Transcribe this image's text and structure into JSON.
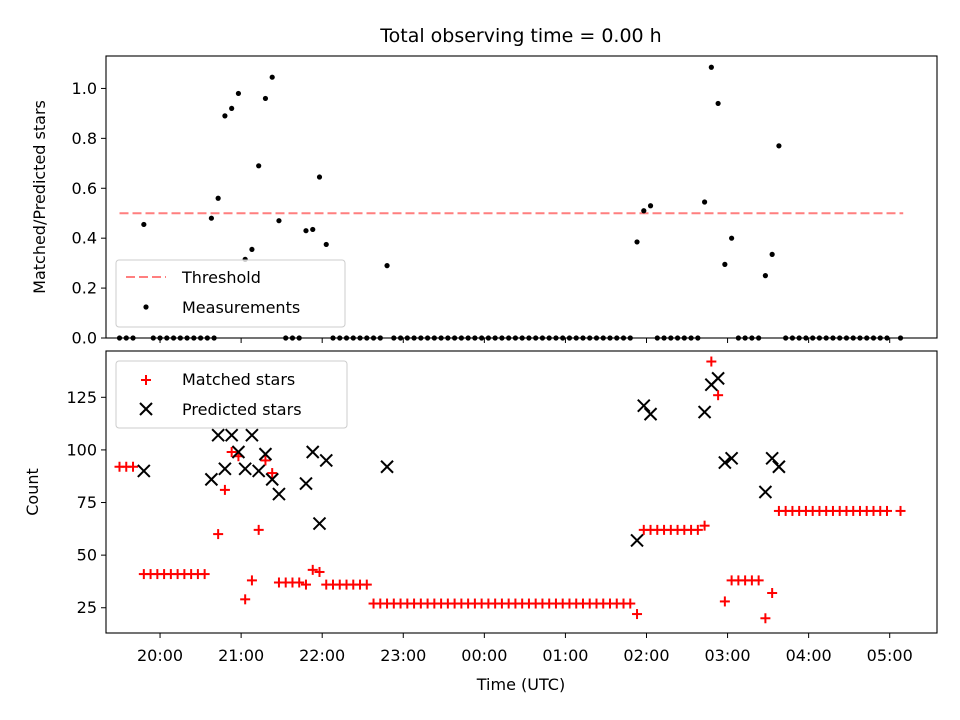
{
  "chart_data": [
    {
      "type": "scatter",
      "title": "Total observing time = 0.00 h",
      "xlabel": "",
      "ylabel": "Matched/Predicted stars",
      "xlim": [
        "19:20",
        "05:35"
      ],
      "ylim": [
        0,
        1.13
      ],
      "yticks": [
        "0.0",
        "0.2",
        "0.4",
        "0.6",
        "0.8",
        "1.0"
      ],
      "legend": "lower-left",
      "colors": {
        "threshold": "#ff7f7f",
        "measurements": "#000000"
      },
      "series": [
        {
          "name": "Threshold",
          "kind": "dashed-line",
          "points": [
            [
              "19:30",
              0.5
            ],
            [
              "05:10",
              0.5
            ]
          ]
        },
        {
          "name": "Measurements",
          "kind": "dots",
          "points": [
            [
              "19:30",
              0
            ],
            [
              "19:35",
              0
            ],
            [
              "19:40",
              0
            ],
            [
              "19:48",
              0.455
            ],
            [
              "19:55",
              0
            ],
            [
              "20:00",
              0
            ],
            [
              "20:05",
              0
            ],
            [
              "20:10",
              0
            ],
            [
              "20:15",
              0
            ],
            [
              "20:20",
              0
            ],
            [
              "20:25",
              0
            ],
            [
              "20:30",
              0
            ],
            [
              "20:35",
              0
            ],
            [
              "20:40",
              0
            ],
            [
              "20:38",
              0.48
            ],
            [
              "20:43",
              0.56
            ],
            [
              "20:48",
              0.89
            ],
            [
              "20:53",
              0.92
            ],
            [
              "20:58",
              0.98
            ],
            [
              "21:03",
              0.315
            ],
            [
              "21:08",
              0.355
            ],
            [
              "21:13",
              0.69
            ],
            [
              "21:18",
              0.96
            ],
            [
              "21:23",
              1.045
            ],
            [
              "21:28",
              0.47
            ],
            [
              "21:33",
              0
            ],
            [
              "21:38",
              0
            ],
            [
              "21:43",
              0
            ],
            [
              "21:48",
              0.43
            ],
            [
              "21:53",
              0.435
            ],
            [
              "21:58",
              0.645
            ],
            [
              "22:03",
              0.375
            ],
            [
              "22:08",
              0
            ],
            [
              "22:13",
              0
            ],
            [
              "22:18",
              0
            ],
            [
              "22:23",
              0
            ],
            [
              "22:28",
              0
            ],
            [
              "22:33",
              0
            ],
            [
              "22:38",
              0
            ],
            [
              "22:43",
              0
            ],
            [
              "22:48",
              0.29
            ],
            [
              "22:53",
              0
            ],
            [
              "22:58",
              0
            ],
            [
              "23:03",
              0
            ],
            [
              "23:08",
              0
            ],
            [
              "23:13",
              0
            ],
            [
              "23:18",
              0
            ],
            [
              "23:23",
              0
            ],
            [
              "23:28",
              0
            ],
            [
              "23:33",
              0
            ],
            [
              "23:38",
              0
            ],
            [
              "23:43",
              0
            ],
            [
              "23:48",
              0
            ],
            [
              "23:53",
              0
            ],
            [
              "23:58",
              0
            ],
            [
              "00:03",
              0
            ],
            [
              "00:08",
              0
            ],
            [
              "00:13",
              0
            ],
            [
              "00:18",
              0
            ],
            [
              "00:23",
              0
            ],
            [
              "00:28",
              0
            ],
            [
              "00:33",
              0
            ],
            [
              "00:38",
              0
            ],
            [
              "00:43",
              0
            ],
            [
              "00:48",
              0
            ],
            [
              "00:53",
              0
            ],
            [
              "00:58",
              0
            ],
            [
              "01:03",
              0
            ],
            [
              "01:08",
              0
            ],
            [
              "01:13",
              0
            ],
            [
              "01:18",
              0
            ],
            [
              "01:23",
              0
            ],
            [
              "01:28",
              0
            ],
            [
              "01:33",
              0
            ],
            [
              "01:38",
              0
            ],
            [
              "01:43",
              0
            ],
            [
              "01:48",
              0
            ],
            [
              "01:53",
              0.385
            ],
            [
              "01:58",
              0.51
            ],
            [
              "02:03",
              0.53
            ],
            [
              "02:08",
              0
            ],
            [
              "02:13",
              0
            ],
            [
              "02:18",
              0
            ],
            [
              "02:23",
              0
            ],
            [
              "02:28",
              0
            ],
            [
              "02:33",
              0
            ],
            [
              "02:38",
              0
            ],
            [
              "02:43",
              0.545
            ],
            [
              "02:48",
              1.085
            ],
            [
              "02:53",
              0.94
            ],
            [
              "02:58",
              0.295
            ],
            [
              "03:03",
              0.4
            ],
            [
              "03:08",
              0
            ],
            [
              "03:13",
              0
            ],
            [
              "03:18",
              0
            ],
            [
              "03:23",
              0
            ],
            [
              "03:28",
              0.25
            ],
            [
              "03:33",
              0.335
            ],
            [
              "03:38",
              0.77
            ],
            [
              "03:43",
              0
            ],
            [
              "03:48",
              0
            ],
            [
              "03:53",
              0
            ],
            [
              "03:58",
              0
            ],
            [
              "04:03",
              0
            ],
            [
              "04:08",
              0
            ],
            [
              "04:13",
              0
            ],
            [
              "04:18",
              0
            ],
            [
              "04:23",
              0
            ],
            [
              "04:28",
              0
            ],
            [
              "04:33",
              0
            ],
            [
              "04:38",
              0
            ],
            [
              "04:43",
              0
            ],
            [
              "04:48",
              0
            ],
            [
              "04:53",
              0
            ],
            [
              "04:58",
              0
            ],
            [
              "05:08",
              0
            ]
          ]
        }
      ]
    },
    {
      "type": "scatter",
      "title": "",
      "xlabel": "Time (UTC)",
      "ylabel": "Count",
      "xlim": [
        "19:20",
        "05:35"
      ],
      "ylim": [
        13,
        147
      ],
      "yticks": [
        "25",
        "50",
        "75",
        "100",
        "125"
      ],
      "xticks": [
        "20:00",
        "21:00",
        "22:00",
        "23:00",
        "00:00",
        "01:00",
        "02:00",
        "03:00",
        "04:00",
        "05:00"
      ],
      "legend": "top-left",
      "colors": {
        "matched": "#ff0000",
        "predicted": "#000000"
      },
      "series": [
        {
          "name": "Matched stars",
          "marker": "plus",
          "points": [
            [
              "19:30",
              92
            ],
            [
              "19:35",
              92
            ],
            [
              "19:40",
              92
            ],
            [
              "19:48",
              41
            ],
            [
              "19:53",
              41
            ],
            [
              "19:58",
              41
            ],
            [
              "20:03",
              41
            ],
            [
              "20:08",
              41
            ],
            [
              "20:13",
              41
            ],
            [
              "20:18",
              41
            ],
            [
              "20:23",
              41
            ],
            [
              "20:28",
              41
            ],
            [
              "20:33",
              41
            ],
            [
              "20:43",
              60
            ],
            [
              "20:48",
              81
            ],
            [
              "20:53",
              99
            ],
            [
              "20:58",
              97
            ],
            [
              "21:03",
              29
            ],
            [
              "21:08",
              38
            ],
            [
              "21:13",
              62
            ],
            [
              "21:18",
              95
            ],
            [
              "21:23",
              89
            ],
            [
              "21:28",
              37
            ],
            [
              "21:33",
              37
            ],
            [
              "21:38",
              37
            ],
            [
              "21:43",
              37
            ],
            [
              "21:48",
              36
            ],
            [
              "21:53",
              43
            ],
            [
              "21:58",
              42
            ],
            [
              "22:03",
              36
            ],
            [
              "22:08",
              36
            ],
            [
              "22:13",
              36
            ],
            [
              "22:18",
              36
            ],
            [
              "22:23",
              36
            ],
            [
              "22:28",
              36
            ],
            [
              "22:33",
              36
            ],
            [
              "22:38",
              27
            ],
            [
              "22:43",
              27
            ],
            [
              "22:48",
              27
            ],
            [
              "22:53",
              27
            ],
            [
              "22:58",
              27
            ],
            [
              "23:03",
              27
            ],
            [
              "23:08",
              27
            ],
            [
              "23:13",
              27
            ],
            [
              "23:18",
              27
            ],
            [
              "23:23",
              27
            ],
            [
              "23:28",
              27
            ],
            [
              "23:33",
              27
            ],
            [
              "23:38",
              27
            ],
            [
              "23:43",
              27
            ],
            [
              "23:48",
              27
            ],
            [
              "23:53",
              27
            ],
            [
              "23:58",
              27
            ],
            [
              "00:03",
              27
            ],
            [
              "00:08",
              27
            ],
            [
              "00:13",
              27
            ],
            [
              "00:18",
              27
            ],
            [
              "00:23",
              27
            ],
            [
              "00:28",
              27
            ],
            [
              "00:33",
              27
            ],
            [
              "00:38",
              27
            ],
            [
              "00:43",
              27
            ],
            [
              "00:48",
              27
            ],
            [
              "00:53",
              27
            ],
            [
              "00:58",
              27
            ],
            [
              "01:03",
              27
            ],
            [
              "01:08",
              27
            ],
            [
              "01:13",
              27
            ],
            [
              "01:18",
              27
            ],
            [
              "01:23",
              27
            ],
            [
              "01:28",
              27
            ],
            [
              "01:33",
              27
            ],
            [
              "01:38",
              27
            ],
            [
              "01:43",
              27
            ],
            [
              "01:48",
              27
            ],
            [
              "01:53",
              22
            ],
            [
              "01:58",
              62
            ],
            [
              "02:03",
              62
            ],
            [
              "02:08",
              62
            ],
            [
              "02:13",
              62
            ],
            [
              "02:18",
              62
            ],
            [
              "02:23",
              62
            ],
            [
              "02:28",
              62
            ],
            [
              "02:33",
              62
            ],
            [
              "02:38",
              62
            ],
            [
              "02:43",
              64
            ],
            [
              "02:48",
              142
            ],
            [
              "02:53",
              126
            ],
            [
              "02:58",
              28
            ],
            [
              "03:03",
              38
            ],
            [
              "03:08",
              38
            ],
            [
              "03:13",
              38
            ],
            [
              "03:18",
              38
            ],
            [
              "03:23",
              38
            ],
            [
              "03:28",
              20
            ],
            [
              "03:33",
              32
            ],
            [
              "03:38",
              71
            ],
            [
              "03:43",
              71
            ],
            [
              "03:48",
              71
            ],
            [
              "03:53",
              71
            ],
            [
              "03:58",
              71
            ],
            [
              "04:03",
              71
            ],
            [
              "04:08",
              71
            ],
            [
              "04:13",
              71
            ],
            [
              "04:18",
              71
            ],
            [
              "04:23",
              71
            ],
            [
              "04:28",
              71
            ],
            [
              "04:33",
              71
            ],
            [
              "04:38",
              71
            ],
            [
              "04:43",
              71
            ],
            [
              "04:48",
              71
            ],
            [
              "04:53",
              71
            ],
            [
              "04:58",
              71
            ],
            [
              "05:08",
              71
            ]
          ]
        },
        {
          "name": "Predicted stars",
          "marker": "x",
          "points": [
            [
              "19:48",
              90
            ],
            [
              "20:38",
              86
            ],
            [
              "20:43",
              107
            ],
            [
              "20:48",
              91
            ],
            [
              "20:53",
              107
            ],
            [
              "20:58",
              99
            ],
            [
              "21:03",
              91
            ],
            [
              "21:08",
              107
            ],
            [
              "21:13",
              90
            ],
            [
              "21:18",
              98
            ],
            [
              "21:23",
              86
            ],
            [
              "21:28",
              79
            ],
            [
              "21:48",
              84
            ],
            [
              "21:53",
              99
            ],
            [
              "21:58",
              65
            ],
            [
              "22:03",
              95
            ],
            [
              "22:48",
              92
            ],
            [
              "01:53",
              57
            ],
            [
              "01:58",
              121
            ],
            [
              "02:03",
              117
            ],
            [
              "02:43",
              118
            ],
            [
              "02:48",
              131
            ],
            [
              "02:53",
              134
            ],
            [
              "02:58",
              94
            ],
            [
              "03:03",
              96
            ],
            [
              "03:28",
              80
            ],
            [
              "03:33",
              96
            ],
            [
              "03:38",
              92
            ]
          ]
        }
      ]
    }
  ]
}
